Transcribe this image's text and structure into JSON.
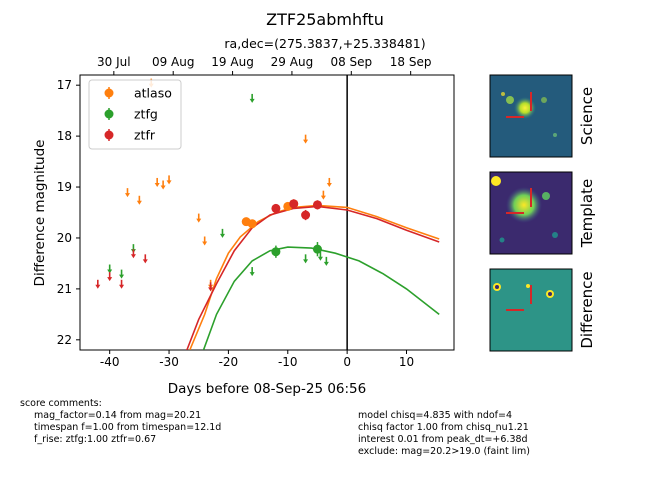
{
  "chart_data": {
    "type": "scatter",
    "title": "ZTF25abmhftu",
    "subtitle": "ra,dec=(275.3837,+25.338481)",
    "xlabel": "Days before 08-Sep-25 06:56",
    "ylabel": "Difference magnitude",
    "xlim": [
      -45,
      18
    ],
    "ylim": [
      22.2,
      16.8
    ],
    "y_inverted": true,
    "x_ticks": [
      -40,
      -30,
      -20,
      -10,
      0,
      10
    ],
    "y_ticks": [
      17,
      18,
      19,
      20,
      21,
      22
    ],
    "top_axis_ticks": [
      {
        "x": -39.3,
        "label": "30 Jul"
      },
      {
        "x": -29.3,
        "label": "09 Aug"
      },
      {
        "x": -19.3,
        "label": "19 Aug"
      },
      {
        "x": -9.3,
        "label": "29 Aug"
      },
      {
        "x": 0.7,
        "label": "08 Sep"
      },
      {
        "x": 10.7,
        "label": "18 Sep"
      }
    ],
    "reference_line_x": 0,
    "legend_position": "top-left",
    "series": [
      {
        "name": "atlaso",
        "color": "#ff7f0e",
        "detections": [
          {
            "x": -17,
            "y": 19.68,
            "err": 0.07
          },
          {
            "x": -16,
            "y": 19.72,
            "err": 0.08
          },
          {
            "x": -10,
            "y": 19.38,
            "err": 0.06
          },
          {
            "x": -9,
            "y": 19.33,
            "err": 0.07
          }
        ],
        "upper_limits": [
          {
            "x": -37,
            "y": 19.1
          },
          {
            "x": -35,
            "y": 19.25
          },
          {
            "x": -33,
            "y": 16.95
          },
          {
            "x": -32,
            "y": 18.9
          },
          {
            "x": -31,
            "y": 18.95
          },
          {
            "x": -30,
            "y": 18.85
          },
          {
            "x": -25,
            "y": 19.6
          },
          {
            "x": -24,
            "y": 20.05
          },
          {
            "x": -23,
            "y": 20.9
          },
          {
            "x": -7,
            "y": 18.05
          },
          {
            "x": -4,
            "y": 19.15
          },
          {
            "x": -3,
            "y": 18.9
          }
        ],
        "model_curve": [
          {
            "x": -26.5,
            "y": 22.2
          },
          {
            "x": -24,
            "y": 21.5
          },
          {
            "x": -22,
            "y": 20.8
          },
          {
            "x": -20,
            "y": 20.3
          },
          {
            "x": -18,
            "y": 19.98
          },
          {
            "x": -15,
            "y": 19.68
          },
          {
            "x": -12,
            "y": 19.5
          },
          {
            "x": -9,
            "y": 19.4
          },
          {
            "x": -5,
            "y": 19.36
          },
          {
            "x": 0,
            "y": 19.4
          },
          {
            "x": 5,
            "y": 19.58
          },
          {
            "x": 10,
            "y": 19.8
          },
          {
            "x": 15.5,
            "y": 20.02
          }
        ]
      },
      {
        "name": "ztfg",
        "color": "#2ca02c",
        "detections": [
          {
            "x": -12,
            "y": 20.27,
            "err": 0.12
          },
          {
            "x": -5,
            "y": 20.22,
            "err": 0.14
          }
        ],
        "upper_limits": [
          {
            "x": -40,
            "y": 20.6
          },
          {
            "x": -38,
            "y": 20.7
          },
          {
            "x": -36,
            "y": 20.2
          },
          {
            "x": -21,
            "y": 19.9
          },
          {
            "x": -16,
            "y": 17.25
          },
          {
            "x": -16,
            "y": 20.65
          },
          {
            "x": -7,
            "y": 20.4
          },
          {
            "x": -4.5,
            "y": 20.35
          },
          {
            "x": -3.5,
            "y": 20.45
          }
        ],
        "model_curve": [
          {
            "x": -24.2,
            "y": 22.2
          },
          {
            "x": -22,
            "y": 21.5
          },
          {
            "x": -19,
            "y": 20.85
          },
          {
            "x": -16,
            "y": 20.45
          },
          {
            "x": -13,
            "y": 20.25
          },
          {
            "x": -10,
            "y": 20.18
          },
          {
            "x": -6,
            "y": 20.2
          },
          {
            "x": -2,
            "y": 20.3
          },
          {
            "x": 2,
            "y": 20.45
          },
          {
            "x": 6,
            "y": 20.7
          },
          {
            "x": 10,
            "y": 21.0
          },
          {
            "x": 15.5,
            "y": 21.5
          }
        ]
      },
      {
        "name": "ztfr",
        "color": "#d62728",
        "detections": [
          {
            "x": -12,
            "y": 19.42,
            "err": 0.08
          },
          {
            "x": -9,
            "y": 19.33,
            "err": 0.09
          },
          {
            "x": -7,
            "y": 19.55,
            "err": 0.1
          },
          {
            "x": -5,
            "y": 19.35,
            "err": 0.09
          }
        ],
        "upper_limits": [
          {
            "x": -42,
            "y": 20.9
          },
          {
            "x": -40,
            "y": 20.75
          },
          {
            "x": -38,
            "y": 20.9
          },
          {
            "x": -36,
            "y": 20.3
          },
          {
            "x": -34,
            "y": 20.4
          },
          {
            "x": -23,
            "y": 20.95
          }
        ],
        "model_curve": [
          {
            "x": -27,
            "y": 22.2
          },
          {
            "x": -25,
            "y": 21.6
          },
          {
            "x": -22,
            "y": 20.9
          },
          {
            "x": -19,
            "y": 20.25
          },
          {
            "x": -16,
            "y": 19.8
          },
          {
            "x": -13,
            "y": 19.55
          },
          {
            "x": -9,
            "y": 19.42
          },
          {
            "x": -5,
            "y": 19.38
          },
          {
            "x": 0,
            "y": 19.45
          },
          {
            "x": 5,
            "y": 19.62
          },
          {
            "x": 10,
            "y": 19.85
          },
          {
            "x": 15.5,
            "y": 20.08
          }
        ]
      }
    ]
  },
  "panels": [
    {
      "label": "Science",
      "style": "science"
    },
    {
      "label": "Template",
      "style": "template"
    },
    {
      "label": "Difference",
      "style": "difference"
    }
  ],
  "comments": {
    "header": "score comments:",
    "left_lines": [
      "mag_factor=0.14 from mag=20.21",
      "timespan f=1.00 from timespan=12.1d",
      "f_rise: ztfg:1.00 ztfr=0.67"
    ],
    "right_lines": [
      "model chisq=4.835 with ndof=4",
      "chisq factor 1.00 from chisq_nu1.21",
      "interest 0.01 from peak_dt=+6.38d",
      "exclude: mag=20.2>19.0 (faint lim)"
    ]
  }
}
